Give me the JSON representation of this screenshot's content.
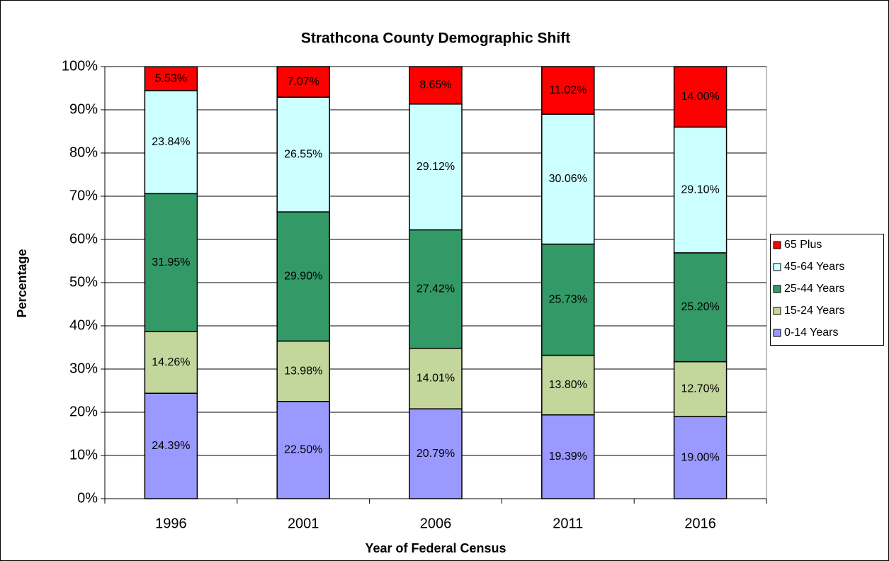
{
  "chart_data": {
    "type": "stacked_bar",
    "title": "Strathcona County Demographic Shift",
    "xlabel": "Year of Federal Census",
    "ylabel": "Percentage",
    "categories": [
      "1996",
      "2001",
      "2006",
      "2011",
      "2016"
    ],
    "series": [
      {
        "name": "0-14 Years",
        "color": "#9999ff",
        "values": [
          24.39,
          22.5,
          20.79,
          19.39,
          19.0
        ],
        "value_labels": [
          "24.39%",
          "22.50%",
          "20.79%",
          "19.39%",
          "19.00%"
        ]
      },
      {
        "name": "15-24 Years",
        "color": "#c3d69b",
        "values": [
          14.26,
          13.98,
          14.01,
          13.8,
          12.7
        ],
        "value_labels": [
          "14.26%",
          "13.98%",
          "14.01%",
          "13.80%",
          "12.70%"
        ]
      },
      {
        "name": "25-44 Years",
        "color": "#339966",
        "values": [
          31.95,
          29.9,
          27.42,
          25.73,
          25.2
        ],
        "value_labels": [
          "31.95%",
          "29.90%",
          "27.42%",
          "25.73%",
          "25.20%"
        ]
      },
      {
        "name": "45-64 Years",
        "color": "#ccffff",
        "values": [
          23.84,
          26.55,
          29.12,
          30.06,
          29.1
        ],
        "value_labels": [
          "23.84%",
          "26.55%",
          "29.12%",
          "30.06%",
          "29.10%"
        ]
      },
      {
        "name": "65 Plus",
        "color": "#ff0000",
        "values": [
          5.53,
          7.07,
          8.65,
          11.02,
          14.0
        ],
        "value_labels": [
          "5.53%",
          "7.07%",
          "8.65%",
          "11.02%",
          "14.00%"
        ]
      }
    ],
    "ylim": [
      0,
      100
    ],
    "yticks": [
      {
        "value": 0,
        "label": "0%"
      },
      {
        "value": 10,
        "label": "10%"
      },
      {
        "value": 20,
        "label": "20%"
      },
      {
        "value": 30,
        "label": "30%"
      },
      {
        "value": 40,
        "label": "40%"
      },
      {
        "value": 50,
        "label": "50%"
      },
      {
        "value": 60,
        "label": "60%"
      },
      {
        "value": 70,
        "label": "70%"
      },
      {
        "value": 80,
        "label": "80%"
      },
      {
        "value": 90,
        "label": "90%"
      },
      {
        "value": 100,
        "label": "100%"
      }
    ],
    "grid": true,
    "legend": "right"
  }
}
